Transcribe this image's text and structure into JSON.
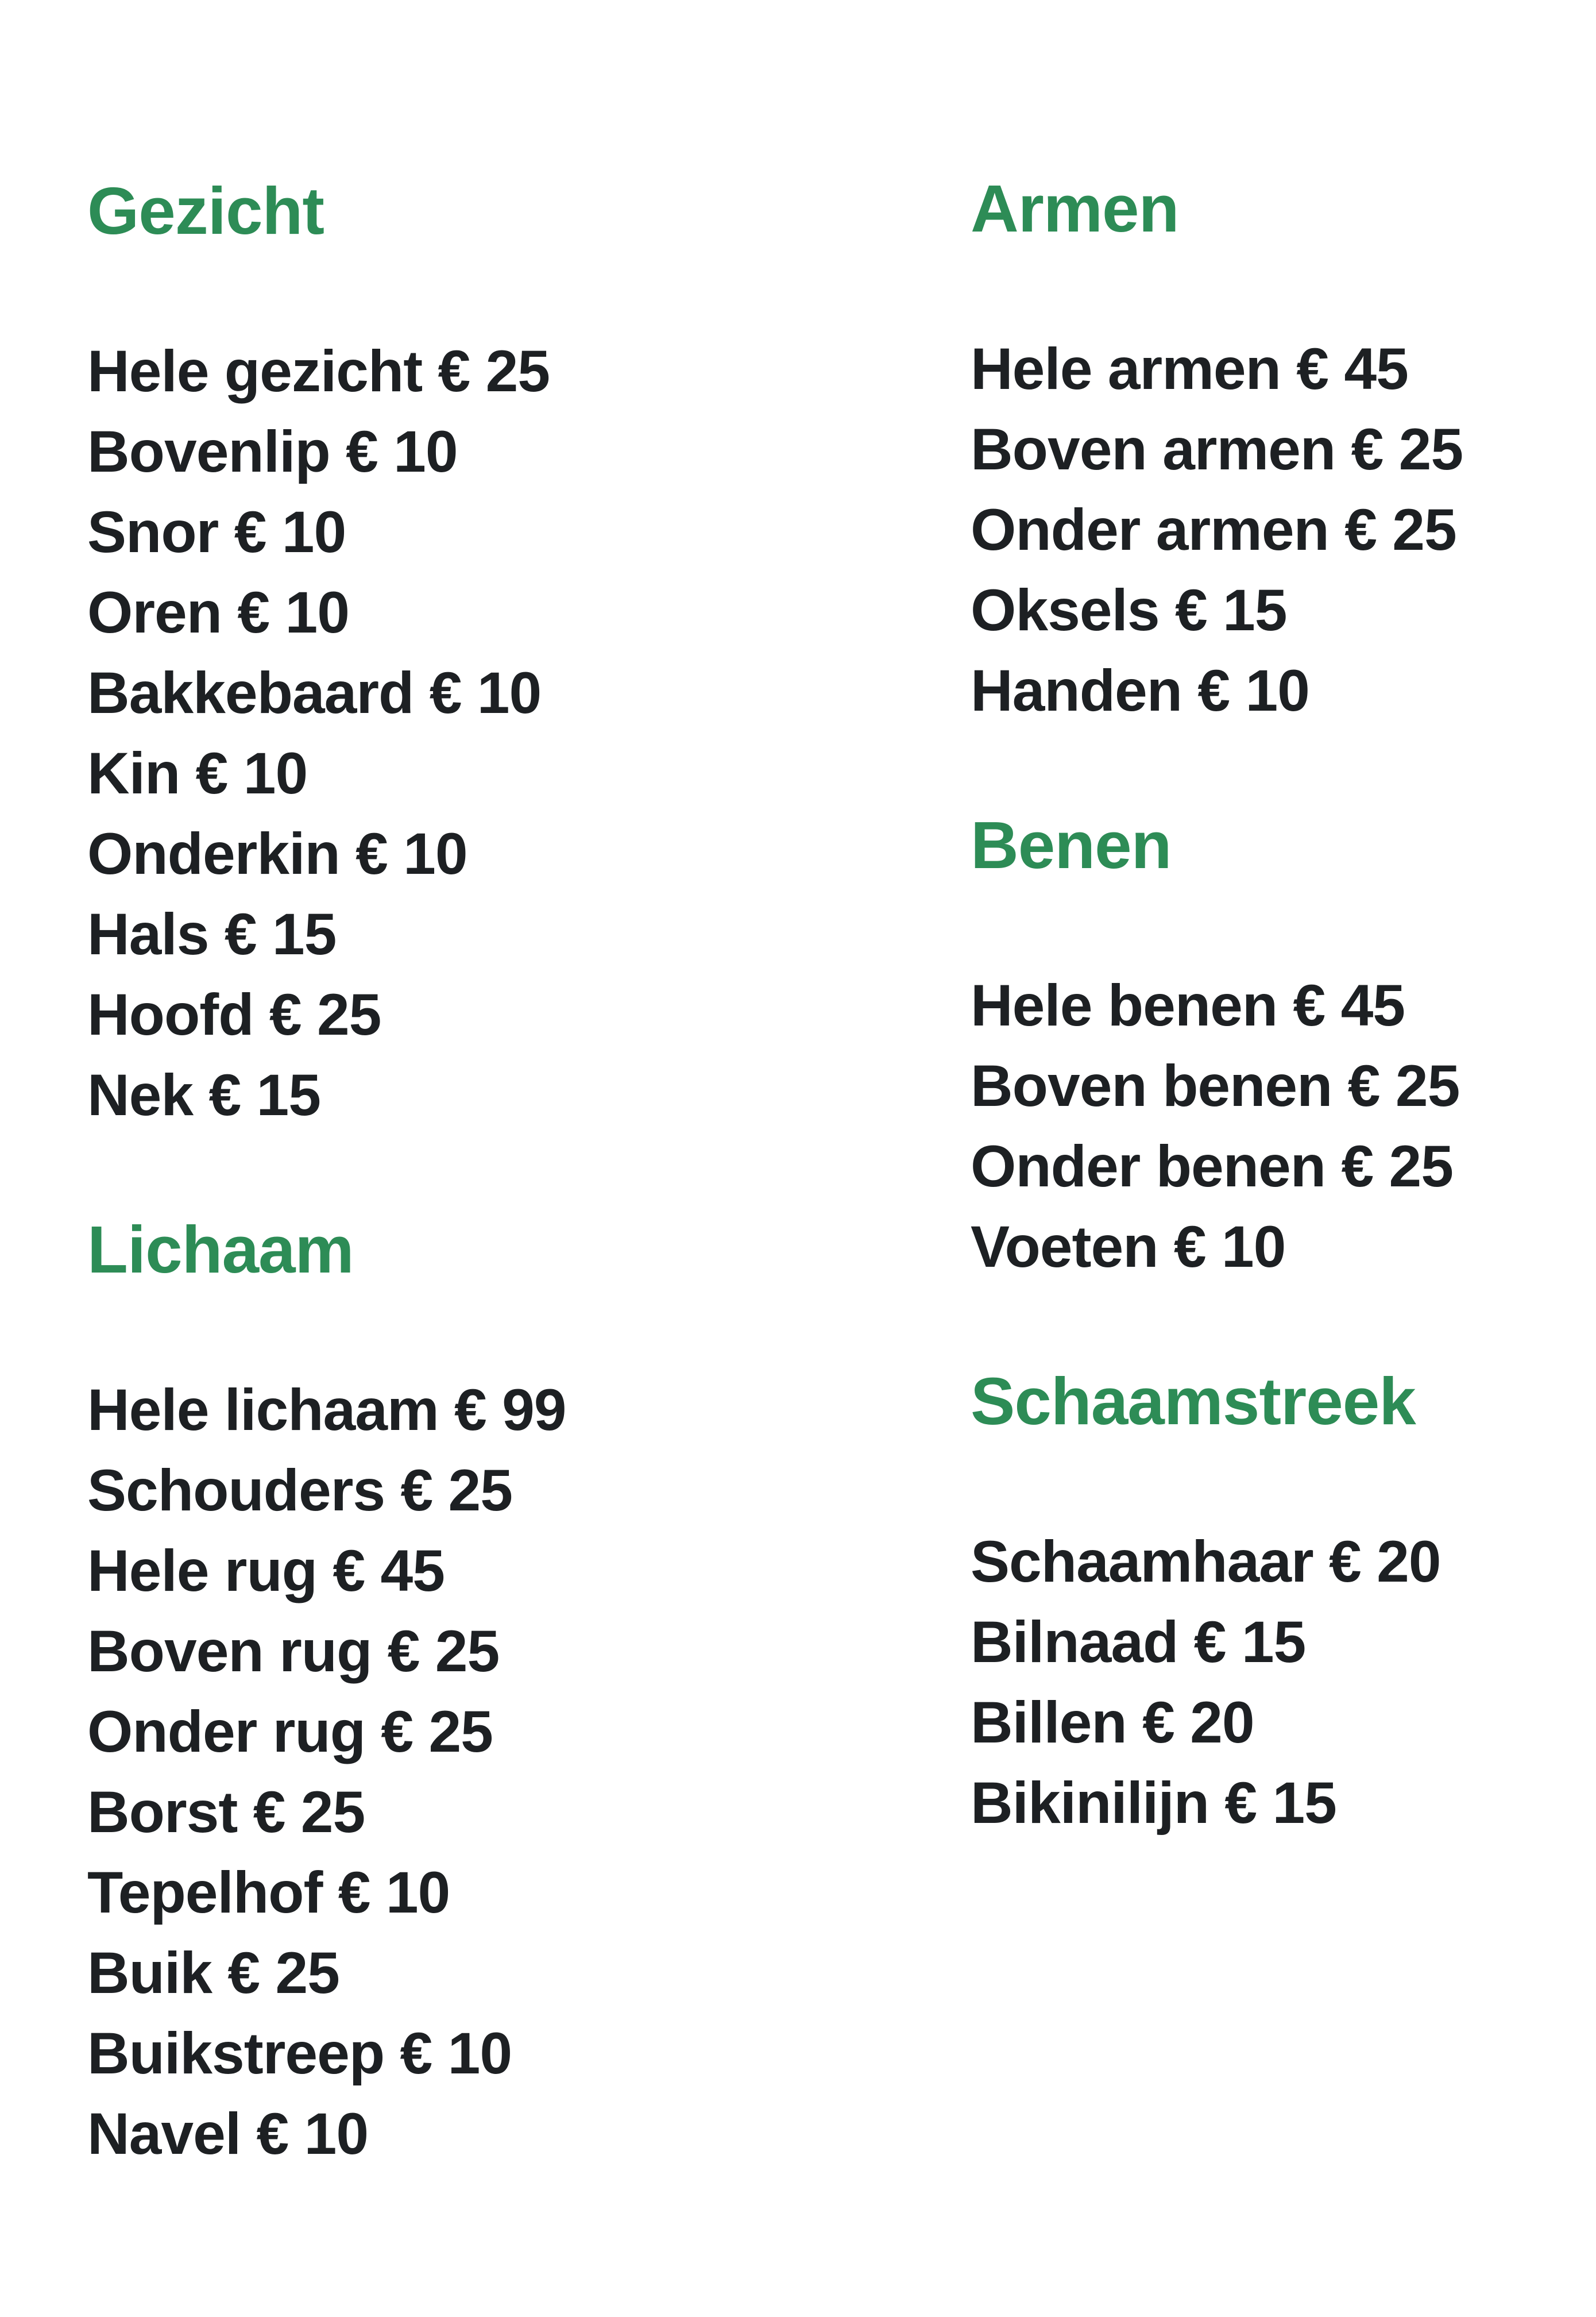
{
  "theme": {
    "background": "#ffffff",
    "accent_green": "#2d8c56",
    "text_color": "#1d2023"
  },
  "price_list": {
    "currency_symbol": "€",
    "columns": [
      {
        "sections": [
          {
            "title": "Gezicht",
            "items": [
              {
                "name": "Hele gezicht",
                "price": "€ 25"
              },
              {
                "name": "Bovenlip",
                "price": "€ 10"
              },
              {
                "name": "Snor",
                "price": "€ 10"
              },
              {
                "name": "Oren",
                "price": "€ 10"
              },
              {
                "name": "Bakkebaard",
                "price": "€ 10"
              },
              {
                "name": "Kin",
                "price": "€ 10"
              },
              {
                "name": "Onderkin",
                "price": "€ 10"
              },
              {
                "name": "Hals",
                "price": "€ 15"
              },
              {
                "name": "Hoofd",
                "price": "€ 25"
              },
              {
                "name": "Nek",
                "price": "€ 15"
              }
            ]
          },
          {
            "title": "Lichaam",
            "items": [
              {
                "name": "Hele lichaam",
                "price": "€ 99"
              },
              {
                "name": "Schouders",
                "price": "€ 25"
              },
              {
                "name": "Hele rug",
                "price": "€ 45"
              },
              {
                "name": "Boven rug",
                "price": "€ 25"
              },
              {
                "name": "Onder rug",
                "price": "€ 25"
              },
              {
                "name": "Borst",
                "price": "€ 25"
              },
              {
                "name": "Tepelhof",
                "price": "€ 10"
              },
              {
                "name": "Buik",
                "price": "€ 25"
              },
              {
                "name": "Buikstreep",
                "price": "€ 10"
              },
              {
                "name": "Navel",
                "price": "€ 10"
              }
            ]
          }
        ]
      },
      {
        "sections": [
          {
            "title": "Armen",
            "items": [
              {
                "name": "Hele armen",
                "price": "€ 45"
              },
              {
                "name": "Boven armen",
                "price": "€ 25"
              },
              {
                "name": "Onder armen",
                "price": "€ 25"
              },
              {
                "name": "Oksels",
                "price": "€ 15"
              },
              {
                "name": "Handen",
                "price": "€ 10"
              }
            ]
          },
          {
            "title": "Benen",
            "items": [
              {
                "name": "Hele benen",
                "price": "€ 45"
              },
              {
                "name": "Boven benen",
                "price": "€ 25"
              },
              {
                "name": "Onder benen",
                "price": "€ 25"
              },
              {
                "name": "Voeten",
                "price": "€ 10"
              }
            ]
          },
          {
            "title": "Schaamstreek",
            "items": [
              {
                "name": "Schaamhaar",
                "price": "€ 20"
              },
              {
                "name": "Bilnaad",
                "price": "€ 15"
              },
              {
                "name": "Billen",
                "price": "€ 20"
              },
              {
                "name": "Bikinilijn",
                "price": "€ 15"
              }
            ]
          }
        ]
      }
    ]
  }
}
